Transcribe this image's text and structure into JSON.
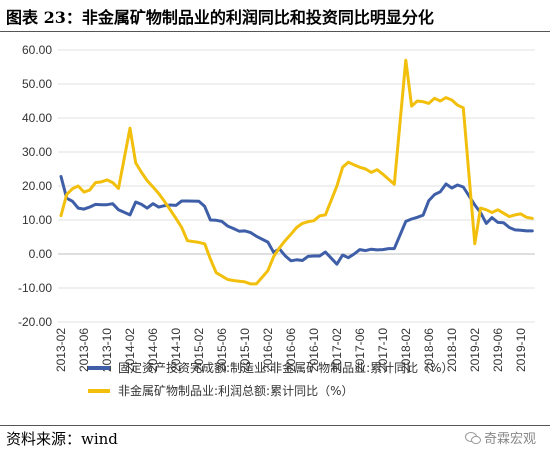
{
  "title": "图表 23：非金属矿物制品业的利润同比和投资同比明显分化",
  "source": "资料来源：wind",
  "watermark": "奇霖宏观",
  "colors": {
    "series1": "#3E5FA8",
    "series2": "#F2C00C"
  },
  "chart_data": {
    "type": "line",
    "ylim": [
      -20,
      60
    ],
    "yticks": [
      "-20.00",
      "-10.00",
      "0.00",
      "10.00",
      "20.00",
      "30.00",
      "40.00",
      "50.00",
      "60.00"
    ],
    "xticks": [
      "2013-02",
      "2013-06",
      "2013-10",
      "2014-02",
      "2014-06",
      "2014-10",
      "2015-02",
      "2015-06",
      "2015-10",
      "2016-02",
      "2016-06",
      "2016-10",
      "2017-02",
      "2017-06",
      "2017-10",
      "2018-02",
      "2018-06",
      "2018-10",
      "2019-02",
      "2019-06",
      "2019-10"
    ],
    "x_start": "2013-02",
    "grid": "horizontal",
    "legend_position": "bottom",
    "series": [
      {
        "name": "固定资产投资完成额:制造业:非金属矿物制品业:累计同比（%）",
        "values": [
          {
            "x": "2013-02",
            "y": 22.8
          },
          {
            "x": "2013-03",
            "y": 16.4
          },
          {
            "x": "2013-04",
            "y": 15.5
          },
          {
            "x": "2013-05",
            "y": 13.5
          },
          {
            "x": "2013-06",
            "y": 13.2
          },
          {
            "x": "2013-07",
            "y": 13.8
          },
          {
            "x": "2013-08",
            "y": 14.6
          },
          {
            "x": "2013-09",
            "y": 14.5
          },
          {
            "x": "2013-10",
            "y": 14.5
          },
          {
            "x": "2013-11",
            "y": 14.8
          },
          {
            "x": "2013-12",
            "y": 13.0
          },
          {
            "x": "2014-02",
            "y": 11.5
          },
          {
            "x": "2014-03",
            "y": 15.3
          },
          {
            "x": "2014-04",
            "y": 14.6
          },
          {
            "x": "2014-05",
            "y": 13.5
          },
          {
            "x": "2014-06",
            "y": 14.8
          },
          {
            "x": "2014-07",
            "y": 13.8
          },
          {
            "x": "2014-08",
            "y": 14.2
          },
          {
            "x": "2014-09",
            "y": 14.4
          },
          {
            "x": "2014-10",
            "y": 14.3
          },
          {
            "x": "2014-11",
            "y": 15.6
          },
          {
            "x": "2014-12",
            "y": 15.6
          },
          {
            "x": "2015-02",
            "y": 15.5
          },
          {
            "x": "2015-03",
            "y": 14.0
          },
          {
            "x": "2015-04",
            "y": 10.0
          },
          {
            "x": "2015-05",
            "y": 9.9
          },
          {
            "x": "2015-06",
            "y": 9.6
          },
          {
            "x": "2015-07",
            "y": 8.2
          },
          {
            "x": "2015-08",
            "y": 7.5
          },
          {
            "x": "2015-09",
            "y": 6.7
          },
          {
            "x": "2015-10",
            "y": 6.8
          },
          {
            "x": "2015-11",
            "y": 6.3
          },
          {
            "x": "2015-12",
            "y": 5.2
          },
          {
            "x": "2016-02",
            "y": 3.5
          },
          {
            "x": "2016-03",
            "y": 0.5
          },
          {
            "x": "2016-04",
            "y": 1.5
          },
          {
            "x": "2016-05",
            "y": -0.5
          },
          {
            "x": "2016-06",
            "y": -2.0
          },
          {
            "x": "2016-07",
            "y": -1.7
          },
          {
            "x": "2016-08",
            "y": -1.9
          },
          {
            "x": "2016-09",
            "y": -0.7
          },
          {
            "x": "2016-10",
            "y": -0.6
          },
          {
            "x": "2016-11",
            "y": -0.6
          },
          {
            "x": "2016-12",
            "y": 0.6
          },
          {
            "x": "2017-02",
            "y": -3.0
          },
          {
            "x": "2017-03",
            "y": -0.3
          },
          {
            "x": "2017-04",
            "y": -1.1
          },
          {
            "x": "2017-05",
            "y": 0.0
          },
          {
            "x": "2017-06",
            "y": 1.3
          },
          {
            "x": "2017-07",
            "y": 1.0
          },
          {
            "x": "2017-08",
            "y": 1.4
          },
          {
            "x": "2017-09",
            "y": 1.2
          },
          {
            "x": "2017-10",
            "y": 1.3
          },
          {
            "x": "2017-11",
            "y": 1.6
          },
          {
            "x": "2017-12",
            "y": 1.6
          },
          {
            "x": "2018-02",
            "y": 9.6
          },
          {
            "x": "2018-03",
            "y": 10.3
          },
          {
            "x": "2018-04",
            "y": 10.8
          },
          {
            "x": "2018-05",
            "y": 11.4
          },
          {
            "x": "2018-06",
            "y": 15.7
          },
          {
            "x": "2018-07",
            "y": 17.5
          },
          {
            "x": "2018-08",
            "y": 18.3
          },
          {
            "x": "2018-09",
            "y": 20.6
          },
          {
            "x": "2018-10",
            "y": 19.4
          },
          {
            "x": "2018-11",
            "y": 20.3
          },
          {
            "x": "2018-12",
            "y": 19.7
          },
          {
            "x": "2019-02",
            "y": 14.4
          },
          {
            "x": "2019-03",
            "y": 12.2
          },
          {
            "x": "2019-04",
            "y": 9.0
          },
          {
            "x": "2019-05",
            "y": 10.7
          },
          {
            "x": "2019-06",
            "y": 9.3
          },
          {
            "x": "2019-07",
            "y": 9.2
          },
          {
            "x": "2019-08",
            "y": 7.8
          },
          {
            "x": "2019-09",
            "y": 7.1
          },
          {
            "x": "2019-10",
            "y": 7.0
          },
          {
            "x": "2019-11",
            "y": 6.8
          },
          {
            "x": "2019-12",
            "y": 6.8
          }
        ]
      },
      {
        "name": "非金属矿物制品业:利润总额:累计同比（%）",
        "values": [
          {
            "x": "2013-02",
            "y": 11.3
          },
          {
            "x": "2013-03",
            "y": 17.5
          },
          {
            "x": "2013-04",
            "y": 19.2
          },
          {
            "x": "2013-05",
            "y": 20.0
          },
          {
            "x": "2013-06",
            "y": 18.2
          },
          {
            "x": "2013-07",
            "y": 18.8
          },
          {
            "x": "2013-08",
            "y": 21.0
          },
          {
            "x": "2013-09",
            "y": 21.2
          },
          {
            "x": "2013-10",
            "y": 21.8
          },
          {
            "x": "2013-11",
            "y": 21.0
          },
          {
            "x": "2013-12",
            "y": 19.3
          },
          {
            "x": "2014-02",
            "y": 37.0
          },
          {
            "x": "2014-03",
            "y": 26.8
          },
          {
            "x": "2014-04",
            "y": 24.0
          },
          {
            "x": "2014-05",
            "y": 21.6
          },
          {
            "x": "2014-06",
            "y": 19.7
          },
          {
            "x": "2014-07",
            "y": 17.8
          },
          {
            "x": "2014-08",
            "y": 15.5
          },
          {
            "x": "2014-09",
            "y": 13.0
          },
          {
            "x": "2014-10",
            "y": 10.5
          },
          {
            "x": "2014-11",
            "y": 7.8
          },
          {
            "x": "2014-12",
            "y": 3.9
          },
          {
            "x": "2015-02",
            "y": 3.4
          },
          {
            "x": "2015-03",
            "y": 3.0
          },
          {
            "x": "2015-04",
            "y": -1.5
          },
          {
            "x": "2015-05",
            "y": -5.5
          },
          {
            "x": "2015-06",
            "y": -6.5
          },
          {
            "x": "2015-07",
            "y": -7.5
          },
          {
            "x": "2015-08",
            "y": -7.8
          },
          {
            "x": "2015-09",
            "y": -8.0
          },
          {
            "x": "2015-10",
            "y": -8.2
          },
          {
            "x": "2015-11",
            "y": -8.8
          },
          {
            "x": "2015-12",
            "y": -8.8
          },
          {
            "x": "2016-02",
            "y": -4.9
          },
          {
            "x": "2016-03",
            "y": -0.8
          },
          {
            "x": "2016-04",
            "y": 1.8
          },
          {
            "x": "2016-05",
            "y": 3.9
          },
          {
            "x": "2016-06",
            "y": 5.8
          },
          {
            "x": "2016-07",
            "y": 7.8
          },
          {
            "x": "2016-08",
            "y": 9.0
          },
          {
            "x": "2016-09",
            "y": 9.5
          },
          {
            "x": "2016-10",
            "y": 9.8
          },
          {
            "x": "2016-11",
            "y": 11.2
          },
          {
            "x": "2016-12",
            "y": 11.5
          },
          {
            "x": "2017-02",
            "y": 20.0
          },
          {
            "x": "2017-03",
            "y": 25.5
          },
          {
            "x": "2017-04",
            "y": 27.0
          },
          {
            "x": "2017-05",
            "y": 26.2
          },
          {
            "x": "2017-06",
            "y": 25.5
          },
          {
            "x": "2017-07",
            "y": 25.0
          },
          {
            "x": "2017-08",
            "y": 24.0
          },
          {
            "x": "2017-09",
            "y": 24.8
          },
          {
            "x": "2017-10",
            "y": 23.5
          },
          {
            "x": "2017-11",
            "y": 22.0
          },
          {
            "x": "2017-12",
            "y": 20.5
          },
          {
            "x": "2018-02",
            "y": 57.0
          },
          {
            "x": "2018-03",
            "y": 43.5
          },
          {
            "x": "2018-04",
            "y": 45.0
          },
          {
            "x": "2018-05",
            "y": 44.8
          },
          {
            "x": "2018-06",
            "y": 44.3
          },
          {
            "x": "2018-07",
            "y": 45.8
          },
          {
            "x": "2018-08",
            "y": 45.0
          },
          {
            "x": "2018-09",
            "y": 46.0
          },
          {
            "x": "2018-10",
            "y": 45.3
          },
          {
            "x": "2018-11",
            "y": 43.8
          },
          {
            "x": "2018-12",
            "y": 43.0
          },
          {
            "x": "2019-02",
            "y": 3.0
          },
          {
            "x": "2019-03",
            "y": 13.5
          },
          {
            "x": "2019-04",
            "y": 13.0
          },
          {
            "x": "2019-05",
            "y": 12.2
          },
          {
            "x": "2019-06",
            "y": 13.0
          },
          {
            "x": "2019-07",
            "y": 12.0
          },
          {
            "x": "2019-08",
            "y": 11.0
          },
          {
            "x": "2019-09",
            "y": 11.5
          },
          {
            "x": "2019-10",
            "y": 11.8
          },
          {
            "x": "2019-11",
            "y": 10.8
          },
          {
            "x": "2019-12",
            "y": 10.5
          }
        ]
      }
    ]
  }
}
